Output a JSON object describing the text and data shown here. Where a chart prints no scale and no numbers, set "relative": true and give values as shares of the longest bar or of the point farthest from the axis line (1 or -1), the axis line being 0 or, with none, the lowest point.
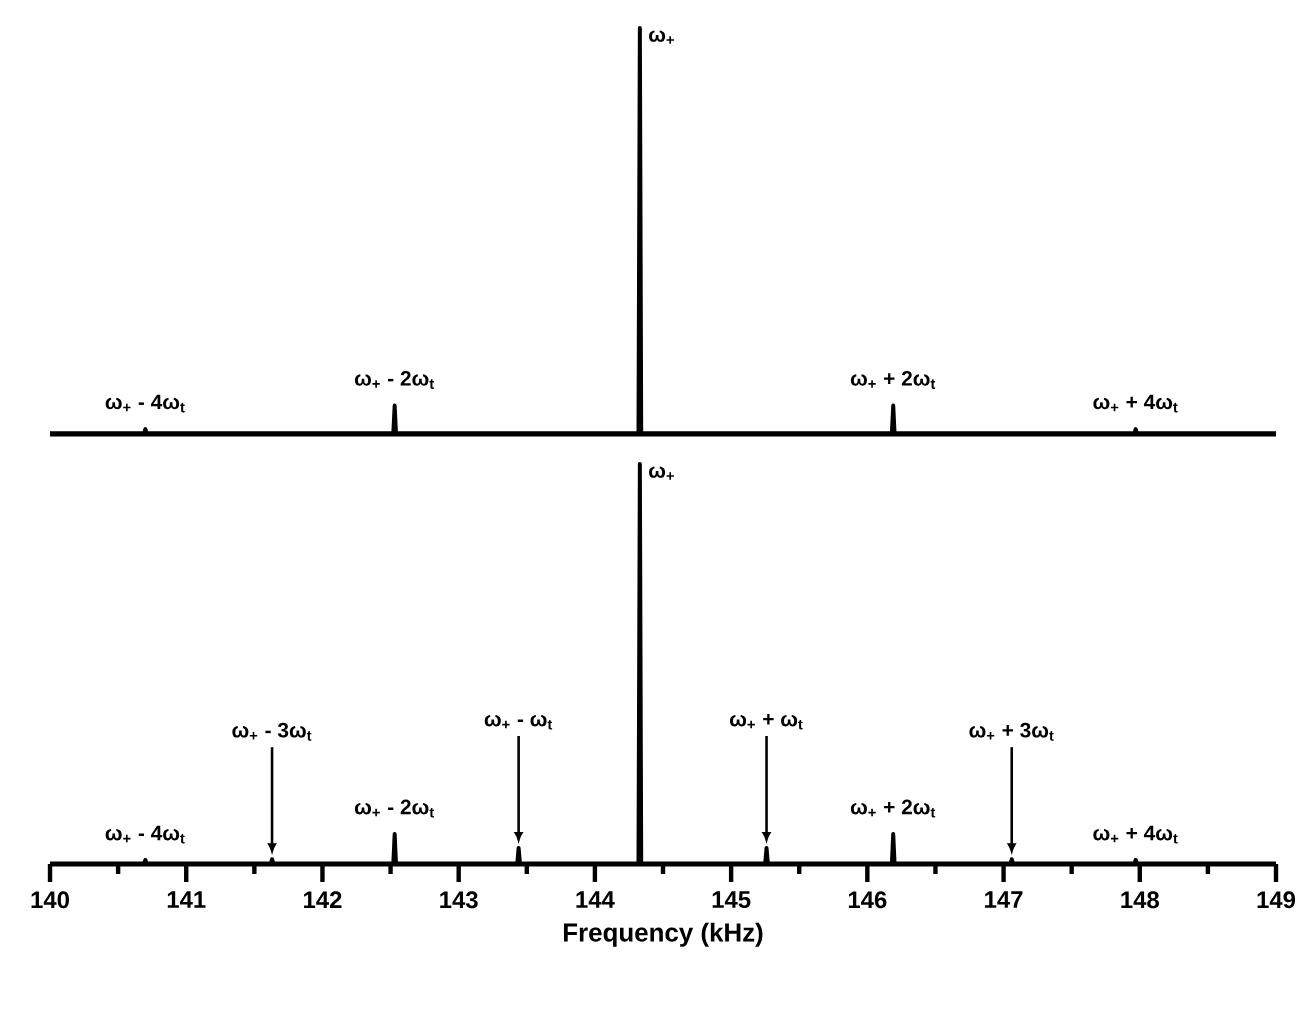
{
  "chart_data": [
    {
      "type": "line",
      "relative": true,
      "xlim": [
        140,
        149
      ],
      "tick_labels": false,
      "x": [
        140,
        140.69,
        140.7,
        140.71,
        142.52,
        142.53,
        142.54,
        144.32,
        144.33,
        144.34,
        146.18,
        146.19,
        146.2,
        147.96,
        147.97,
        147.98,
        149
      ],
      "series": [
        {
          "color": "#000000",
          "values": [
            0,
            0,
            0.012,
            0,
            0,
            0.07,
            0,
            0,
            1,
            0,
            0,
            0.07,
            0,
            0,
            0.012,
            0,
            0
          ]
        }
      ],
      "annotations": [
        {
          "text": "ω$_{+}$",
          "x": 144.33,
          "y": 1
        },
        {
          "text": "ω$_{+}$ - 4ω$_{t}$",
          "x": 140.7,
          "y": 0.012
        },
        {
          "text": "ω$_{+}$ - 2ω$_{t}$",
          "x": 142.53,
          "y": 0.07
        },
        {
          "text": "ω$_{+}$ + 2ω$_{t}$",
          "x": 146.19,
          "y": 0.07
        },
        {
          "text": "ω$_{+}$ + 4ω$_{t}$",
          "x": 147.97,
          "y": 0.012
        }
      ]
    },
    {
      "type": "line",
      "relative": true,
      "xlim": [
        140,
        149
      ],
      "tick_labels": "x",
      "xlabel": "Frequency (kHz)",
      "xticks": [
        140,
        141,
        142,
        143,
        144,
        145,
        146,
        147,
        148,
        149
      ],
      "x": [
        140,
        140.69,
        140.7,
        140.71,
        141.62,
        141.63,
        141.64,
        142.52,
        142.53,
        142.54,
        143.43,
        143.44,
        143.45,
        144.32,
        144.33,
        144.34,
        145.25,
        145.26,
        145.27,
        146.18,
        146.19,
        146.2,
        147.05,
        147.06,
        147.07,
        147.96,
        147.97,
        147.98,
        149
      ],
      "series": [
        {
          "color": "#000000",
          "values": [
            0,
            0,
            0.01,
            0,
            0,
            0.012,
            0,
            0,
            0.075,
            0,
            0,
            0.04,
            0,
            0,
            1,
            0,
            0,
            0.04,
            0,
            0,
            0.075,
            0,
            0,
            0.012,
            0,
            0,
            0.01,
            0,
            0
          ]
        }
      ],
      "annotations": [
        {
          "text": "ω$_{+}$",
          "x": 144.33,
          "y": 1
        },
        {
          "text": "ω$_{+}$ - 4ω$_{t}$",
          "x": 140.7,
          "y": 0.01
        },
        {
          "text": "ω$_{+}$ - 3ω$_{t}$",
          "x": 141.63,
          "y": 0.012
        },
        {
          "text": "ω$_{+}$ - 2ω$_{t}$",
          "x": 142.53,
          "y": 0.075
        },
        {
          "text": "ω$_{+}$ - ω$_{t}$",
          "x": 143.44,
          "y": 0.04
        },
        {
          "text": "ω$_{+}$ + ω$_{t}$",
          "x": 145.26,
          "y": 0.04
        },
        {
          "text": "ω$_{+}$ + 2ω$_{t}$",
          "x": 146.19,
          "y": 0.075
        },
        {
          "text": "ω$_{+}$ + 3ω$_{t}$",
          "x": 147.06,
          "y": 0.012
        },
        {
          "text": "ω$_{+}$ + 4ω$_{t}$",
          "x": 147.97,
          "y": 0.01
        }
      ]
    }
  ]
}
